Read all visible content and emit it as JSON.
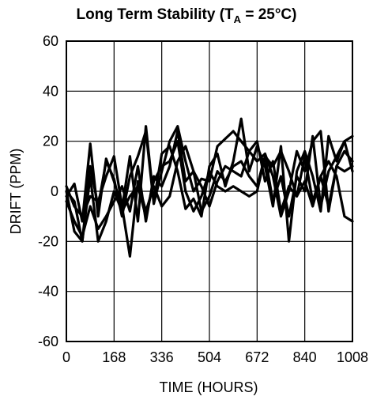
{
  "chart_data": {
    "type": "line",
    "title": {
      "main": "Long Term Stability (T",
      "subscript": "A",
      "suffix": " = 25°C)"
    },
    "xlabel": "TIME (HOURS)",
    "ylabel": "DRIFT (PPM)",
    "xlim": [
      0,
      1008
    ],
    "ylim": [
      -60,
      60
    ],
    "x_ticks": [
      0,
      168,
      336,
      504,
      672,
      840,
      1008
    ],
    "y_ticks": [
      -60,
      -40,
      -20,
      0,
      20,
      40,
      60
    ],
    "x_tick_labels": [
      "0",
      "168",
      "336",
      "504",
      "672",
      "840",
      "1008"
    ],
    "y_tick_labels": [
      "-60",
      "-40",
      "-20",
      "0",
      "20",
      "40",
      "60"
    ],
    "grid": true,
    "line_color": "#000000",
    "series": [
      {
        "x": [
          0,
          28,
          56,
          84,
          112,
          140,
          168,
          196,
          224,
          252,
          280,
          308,
          336,
          364,
          392,
          420,
          448,
          476,
          504,
          532,
          560,
          588,
          616,
          644,
          672,
          700,
          728,
          756,
          784,
          812,
          840,
          868,
          896,
          924,
          952,
          980,
          1008
        ],
        "y": [
          -2,
          3,
          -12,
          19,
          -10,
          13,
          4,
          -7,
          14,
          -12,
          26,
          -4,
          15,
          18,
          8,
          -7,
          -3,
          -10,
          10,
          15,
          2,
          12,
          29,
          8,
          18,
          10,
          -6,
          18,
          -20,
          8,
          16,
          6,
          -8,
          22,
          12,
          20,
          22
        ]
      },
      {
        "x": [
          0,
          28,
          56,
          84,
          112,
          140,
          168,
          196,
          224,
          252,
          280,
          308,
          336,
          364,
          392,
          420,
          448,
          476,
          504,
          532,
          560,
          588,
          616,
          644,
          672,
          700,
          728,
          756,
          784,
          812,
          840,
          868,
          896,
          924,
          952,
          980,
          1008
        ],
        "y": [
          0,
          -16,
          -20,
          10,
          -6,
          12,
          5,
          -10,
          6,
          14,
          24,
          -5,
          8,
          20,
          26,
          12,
          0,
          5,
          4,
          18,
          21,
          24,
          20,
          16,
          12,
          15,
          6,
          -10,
          0,
          16,
          8,
          20,
          24,
          -8,
          10,
          16,
          12
        ]
      },
      {
        "x": [
          0,
          28,
          56,
          84,
          112,
          140,
          168,
          196,
          224,
          252,
          280,
          308,
          336,
          364,
          392,
          420,
          448,
          476,
          504,
          532,
          560,
          588,
          616,
          644,
          672,
          700,
          728,
          756,
          784,
          812,
          840,
          868,
          896,
          924,
          952,
          980,
          1008
        ],
        "y": [
          -4,
          -12,
          -18,
          -6,
          -15,
          -10,
          -4,
          2,
          -8,
          10,
          -12,
          6,
          2,
          10,
          24,
          4,
          8,
          2,
          -6,
          4,
          10,
          8,
          6,
          16,
          20,
          4,
          12,
          -8,
          2,
          -2,
          4,
          -6,
          6,
          12,
          6,
          -10,
          -12
        ]
      },
      {
        "x": [
          0,
          28,
          56,
          84,
          112,
          140,
          168,
          196,
          224,
          252,
          280,
          308,
          336,
          364,
          392,
          420,
          448,
          476,
          504,
          532,
          560,
          588,
          616,
          644,
          672,
          700,
          728,
          756,
          784,
          812,
          840,
          868,
          896,
          924,
          952,
          980,
          1008
        ],
        "y": [
          2,
          -6,
          -10,
          -2,
          -4,
          6,
          14,
          -6,
          -26,
          4,
          -8,
          2,
          -6,
          -2,
          12,
          18,
          8,
          -8,
          -2,
          8,
          4,
          10,
          12,
          6,
          2,
          14,
          -4,
          6,
          -10,
          6,
          0,
          22,
          -6,
          8,
          14,
          20,
          8
        ]
      },
      {
        "x": [
          0,
          28,
          56,
          84,
          112,
          140,
          168,
          196,
          224,
          252,
          280,
          308,
          336,
          364,
          392,
          420,
          448,
          476,
          504,
          532,
          560,
          588,
          616,
          644,
          672,
          700,
          728,
          756,
          784,
          812,
          840,
          868,
          896,
          924,
          952,
          980,
          1008
        ],
        "y": [
          0,
          -4,
          -20,
          6,
          -20,
          -12,
          0,
          -8,
          -2,
          2,
          -10,
          4,
          10,
          12,
          20,
          0,
          -8,
          -2,
          8,
          2,
          0,
          2,
          0,
          -2,
          0,
          14,
          10,
          16,
          8,
          -2,
          14,
          -4,
          6,
          -6,
          10,
          8,
          10
        ]
      }
    ]
  }
}
